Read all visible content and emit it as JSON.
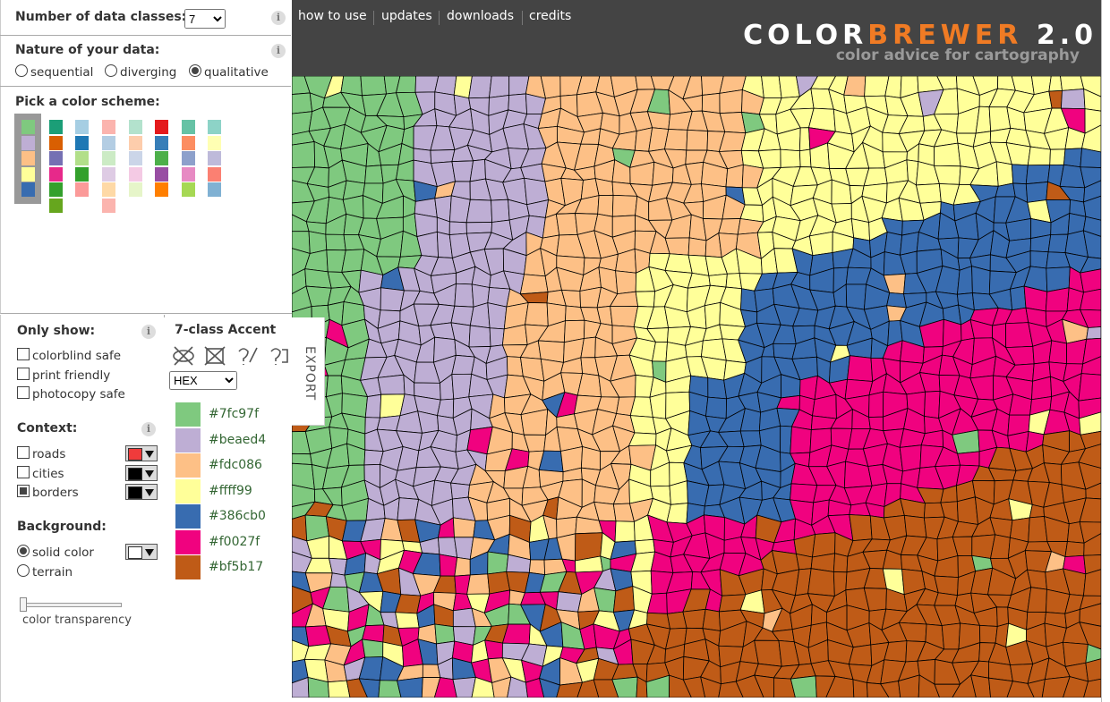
{
  "header": {
    "nav": [
      "how to use",
      "updates",
      "downloads",
      "credits"
    ],
    "logo_a": "COLOR",
    "logo_b": "BREWER",
    "logo_c": "2.0",
    "tagline": "color advice for cartography"
  },
  "controls": {
    "info_icon": "i",
    "classes_label": "Number of data classes:",
    "classes_value": "7",
    "nature_label": "Nature of your data:",
    "nature_options": [
      "sequential",
      "diverging",
      "qualitative"
    ],
    "scheme_label": "Pick a color scheme:",
    "schemes": [
      [
        "#7fc97f",
        "#beaed4",
        "#fdc086",
        "#ffff99",
        "#386cb0"
      ],
      [
        "#1b9e77",
        "#d95f02",
        "#7570b3",
        "#e7298a",
        "#33a02c",
        "#66a61e"
      ],
      [
        "#a6cee3",
        "#1f78b4",
        "#b2df8a",
        "#33a02c",
        "#fb9a99"
      ],
      [
        "#fbb4ae",
        "#b3cde3",
        "#ccebc5",
        "#decbe4",
        "#fed9a6",
        "#fbb4ae"
      ],
      [
        "#b3e2cd",
        "#fdcdac",
        "#cbd5e8",
        "#f4cae4",
        "#e6f5c9"
      ],
      [
        "#e41a1c",
        "#377eb8",
        "#4daf4a",
        "#984ea3",
        "#ff7f00"
      ],
      [
        "#66c2a5",
        "#fc8d62",
        "#8da0cb",
        "#e78ac3",
        "#a6d854"
      ],
      [
        "#8dd3c7",
        "#ffffb3",
        "#bebada",
        "#fb8072",
        "#80b1d3"
      ]
    ]
  },
  "filters": {
    "label": "Only show:",
    "options": [
      "colorblind safe",
      "print friendly",
      "photocopy safe"
    ]
  },
  "context": {
    "label": "Context:",
    "options": [
      "roads",
      "cities",
      "borders"
    ],
    "colors": [
      "#f03b3b",
      "#000000",
      "#000000"
    ]
  },
  "background": {
    "label": "Background:",
    "options": [
      "solid color",
      "terrain"
    ],
    "slider_label": "color transparency"
  },
  "palette": {
    "title": "7-class Accent",
    "format": "HEX",
    "export": "EXPORT",
    "colors": [
      "#7fc97f",
      "#beaed4",
      "#fdc086",
      "#ffff99",
      "#386cb0",
      "#f0027f",
      "#bf5b17"
    ]
  }
}
